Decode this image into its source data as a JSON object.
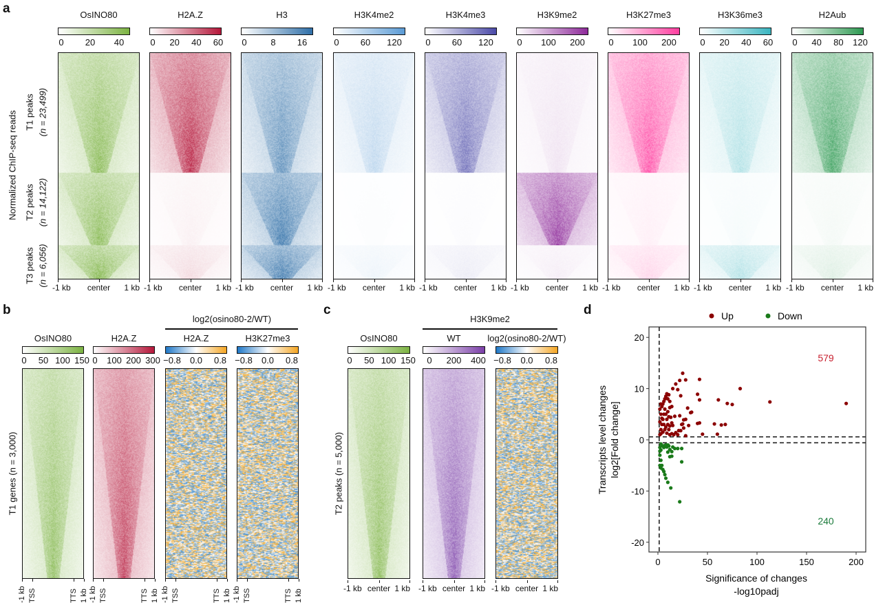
{
  "panels": {
    "a": "a",
    "b": "b",
    "c": "c",
    "d": "d"
  },
  "panel_a": {
    "ylabel": "Normalized ChIP-seq reads",
    "sections": [
      {
        "name": "T1 peaks",
        "n": "(n = 23,499)"
      },
      {
        "name": "T2 peaks",
        "n": "(n = 14,122)"
      },
      {
        "name": "T3 peaks",
        "n": "(n = 6,056)"
      }
    ],
    "xticks": [
      "-1 kb",
      "center",
      "1 kb"
    ],
    "columns": [
      {
        "title": "OsINO80",
        "ticks": [
          "0",
          "20",
          "40"
        ],
        "color": "#7cb342",
        "levels": [
          0.8,
          0.8,
          0.85
        ]
      },
      {
        "title": "H2A.Z",
        "ticks": [
          "0",
          "20",
          "40",
          "60"
        ],
        "color": "#b5173a",
        "levels": [
          0.85,
          0.06,
          0.15
        ]
      },
      {
        "title": "H3",
        "ticks": [
          "0",
          "8",
          "16"
        ],
        "color": "#2f6fa8",
        "levels": [
          0.7,
          0.85,
          0.85
        ]
      },
      {
        "title": "H3K4me2",
        "ticks": [
          "0",
          "60",
          "120"
        ],
        "color": "#5b9bd5",
        "levels": [
          0.35,
          0.02,
          0.1
        ]
      },
      {
        "title": "H3K4me3",
        "ticks": [
          "0",
          "60",
          "120"
        ],
        "color": "#4b4aa8",
        "levels": [
          0.7,
          0.02,
          0.1
        ]
      },
      {
        "title": "H3K9me2",
        "ticks": [
          "0",
          "100",
          "200"
        ],
        "color": "#8e2a9a",
        "levels": [
          0.12,
          0.85,
          0.08
        ]
      },
      {
        "title": "H3K27me3",
        "ticks": [
          "0",
          "100",
          "200"
        ],
        "color": "#ff3ea0",
        "levels": [
          0.8,
          0.08,
          0.2
        ]
      },
      {
        "title": "H3K36me3",
        "ticks": [
          "0",
          "20",
          "40",
          "60"
        ],
        "color": "#3ab5c0",
        "levels": [
          0.35,
          0.05,
          0.35
        ]
      },
      {
        "title": "H2Aub",
        "ticks": [
          "0",
          "40",
          "80",
          "120"
        ],
        "color": "#2e9a52",
        "levels": [
          0.8,
          0.05,
          0.15
        ]
      }
    ]
  },
  "panel_b": {
    "ylabel": "T1 genes (n = 3,000)",
    "group_header": "log2(osino80-2/WT)",
    "xticks": [
      "-1 kb",
      "TSS",
      "TTS",
      "1 kb"
    ],
    "columns": [
      {
        "title": "OsINO80",
        "ticks": [
          "0",
          "50",
          "100",
          "150"
        ],
        "color": "#7cb342",
        "type": "seq"
      },
      {
        "title": "H2A.Z",
        "ticks": [
          "0",
          "100",
          "200",
          "300"
        ],
        "color": "#b5173a",
        "type": "seq"
      },
      {
        "title": "H2A.Z",
        "ticks": [
          "−0.8",
          "0.0",
          "0.8"
        ],
        "color": "#f5a623",
        "type": "div"
      },
      {
        "title": "H3K27me3",
        "ticks": [
          "−0.8",
          "0.0",
          "0.8"
        ],
        "color": "#f5a623",
        "type": "div"
      }
    ]
  },
  "panel_c": {
    "ylabel": "T2 peaks (n = 5,000)",
    "group_header": "H3K9me2",
    "xticks": [
      "-1 kb",
      "center",
      "1 kb"
    ],
    "columns": [
      {
        "title": "OsINO80",
        "ticks": [
          "0",
          "50",
          "100",
          "150"
        ],
        "color": "#7cb342",
        "type": "seq"
      },
      {
        "title": "WT",
        "ticks": [
          "0",
          "200",
          "400"
        ],
        "color": "#7b3fa8",
        "type": "seq"
      },
      {
        "title": "log2(osino80-2/WT)",
        "ticks": [
          "−0.8",
          "0.0",
          "0.8"
        ],
        "color": "#f5a623",
        "type": "div"
      }
    ]
  },
  "chart_data": {
    "type": "scatter",
    "xlabel": "Significance of changes",
    "xlabel2": "-log10padj",
    "ylabel": "Transcripts level changes",
    "ylabel2": "log2[Fold change]",
    "xlim": [
      -10,
      210
    ],
    "ylim": [
      -22,
      22
    ],
    "xticks": [
      0,
      50,
      100,
      150,
      200
    ],
    "yticks": [
      20,
      10,
      0,
      -10,
      -20
    ],
    "ref_lines": {
      "x": 1.3,
      "y": [
        0.58,
        -0.58
      ]
    },
    "legend_position": "top",
    "annotations": [
      {
        "text": "579",
        "series": "Up"
      },
      {
        "text": "240",
        "series": "Down"
      }
    ],
    "series": [
      {
        "name": "Up",
        "color": "#8b0000",
        "points": [
          [
            25,
            13
          ],
          [
            28,
            11.7
          ],
          [
            22,
            11.6
          ],
          [
            18,
            10.9
          ],
          [
            15,
            10
          ],
          [
            20,
            9.8
          ],
          [
            42,
            11.8
          ],
          [
            83,
            10
          ],
          [
            40,
            8.9
          ],
          [
            42,
            7.8
          ],
          [
            61,
            7.8
          ],
          [
            70,
            7.1
          ],
          [
            75,
            6.9
          ],
          [
            113,
            7.4
          ],
          [
            190,
            7.1
          ],
          [
            23,
            8.6
          ],
          [
            30,
            6.2
          ],
          [
            33,
            5.3
          ],
          [
            34,
            5.4
          ],
          [
            17,
            4.6
          ],
          [
            22,
            4.7
          ],
          [
            26,
            3.9
          ],
          [
            28,
            4
          ],
          [
            24,
            3
          ],
          [
            25,
            3.1
          ],
          [
            31,
            2.8
          ],
          [
            40,
            3.2
          ],
          [
            42,
            3.3
          ],
          [
            57,
            3.1
          ],
          [
            64,
            2.9
          ],
          [
            68,
            3
          ],
          [
            21,
            1.8
          ],
          [
            23,
            1.8
          ],
          [
            26,
            2.3
          ],
          [
            20,
            1
          ],
          [
            28,
            0.8
          ],
          [
            45,
            1.1
          ],
          [
            60,
            1.1
          ],
          [
            12,
            6.3
          ],
          [
            14,
            6.5
          ],
          [
            12,
            7.5
          ],
          [
            10,
            8
          ],
          [
            13,
            4.4
          ],
          [
            15,
            2.8
          ],
          [
            14,
            3.3
          ],
          [
            2,
            6
          ],
          [
            3,
            5
          ],
          [
            4,
            6.5
          ],
          [
            5,
            7
          ],
          [
            6,
            7.5
          ],
          [
            7,
            8
          ],
          [
            8,
            8.5
          ],
          [
            9,
            9
          ],
          [
            11,
            8.8
          ],
          [
            2,
            1
          ],
          [
            3,
            2
          ],
          [
            4,
            3
          ],
          [
            5,
            4
          ],
          [
            6,
            5
          ],
          [
            7,
            6
          ],
          [
            8,
            5
          ],
          [
            9,
            4
          ],
          [
            10,
            3
          ],
          [
            11,
            2
          ],
          [
            12,
            1
          ],
          [
            3,
            1.2
          ],
          [
            5,
            1.5
          ],
          [
            7,
            2
          ],
          [
            9,
            1.3
          ],
          [
            11,
            4.5
          ],
          [
            4,
            4.2
          ],
          [
            6,
            3
          ],
          [
            8,
            2.5
          ],
          [
            10,
            5.5
          ],
          [
            12,
            2.7
          ],
          [
            14,
            1.2
          ],
          [
            16,
            1
          ],
          [
            18,
            1.4
          ],
          [
            2,
            3.5
          ],
          [
            3,
            7
          ]
        ]
      },
      {
        "name": "Down",
        "color": "#1a7a1a",
        "points": [
          [
            10,
            -2.4
          ],
          [
            12,
            -1.9
          ],
          [
            14,
            -2.3
          ],
          [
            15,
            -1.4
          ],
          [
            17,
            -1.7
          ],
          [
            20,
            -1.7
          ],
          [
            24,
            -1.7
          ],
          [
            12,
            -3.3
          ],
          [
            14,
            -3.2
          ],
          [
            24,
            -4.3
          ],
          [
            7,
            -6.8
          ],
          [
            8,
            -7.5
          ],
          [
            10,
            -8.3
          ],
          [
            13,
            -9.4
          ],
          [
            22,
            -12.1
          ],
          [
            3,
            -4
          ],
          [
            4,
            -5
          ],
          [
            5,
            -5.8
          ],
          [
            6,
            -6.2
          ],
          [
            2,
            -3
          ],
          [
            3,
            -2
          ],
          [
            5,
            -1.2
          ],
          [
            8,
            -1
          ],
          [
            10,
            -1
          ],
          [
            6,
            -1.5
          ],
          [
            4,
            -1.1
          ],
          [
            2,
            -1.5
          ],
          [
            3,
            -0.8
          ],
          [
            7,
            -1.1
          ],
          [
            9,
            -1.4
          ],
          [
            11,
            -1.2
          ],
          [
            2,
            -5
          ],
          [
            3,
            -5.5
          ],
          [
            2,
            -2.2
          ]
        ]
      }
    ]
  }
}
